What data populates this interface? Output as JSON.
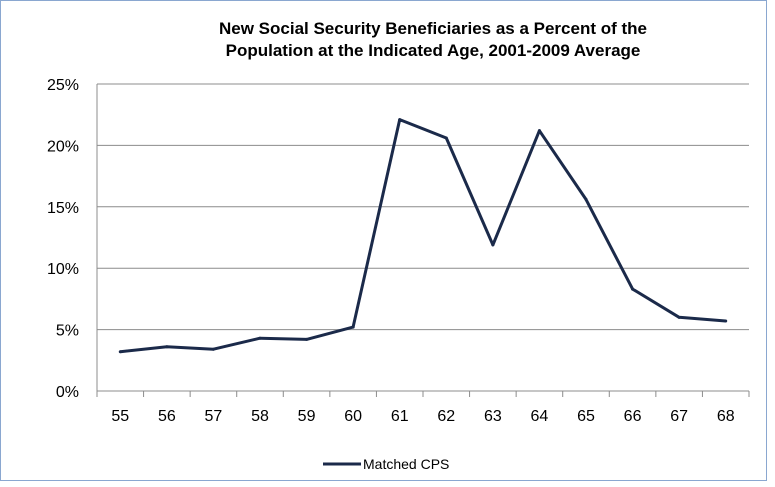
{
  "chart_data": {
    "type": "line",
    "title": "New Social Security Beneficiaries as a Percent of the Population at the Indicated Age, 2001-2009 Average",
    "title_lines": [
      "New Social Security Beneficiaries as a Percent of the",
      "Population at the Indicated Age, 2001-2009 Average"
    ],
    "xlabel": "",
    "ylabel": "",
    "categories": [
      "55",
      "56",
      "57",
      "58",
      "59",
      "60",
      "61",
      "62",
      "63",
      "64",
      "65",
      "66",
      "67",
      "68"
    ],
    "series": [
      {
        "name": "Matched CPS",
        "color": "#1b2a4a",
        "values": [
          3.2,
          3.6,
          3.4,
          4.3,
          4.2,
          5.2,
          22.1,
          20.6,
          11.9,
          21.2,
          15.6,
          8.3,
          6.0,
          5.7
        ]
      }
    ],
    "ylim": [
      0,
      25
    ],
    "yticks": [
      0,
      5,
      10,
      15,
      20,
      25
    ],
    "ytick_labels": [
      "0%",
      "5%",
      "10%",
      "15%",
      "20%",
      "25%"
    ],
    "grid": true,
    "legend_position": "bottom"
  }
}
